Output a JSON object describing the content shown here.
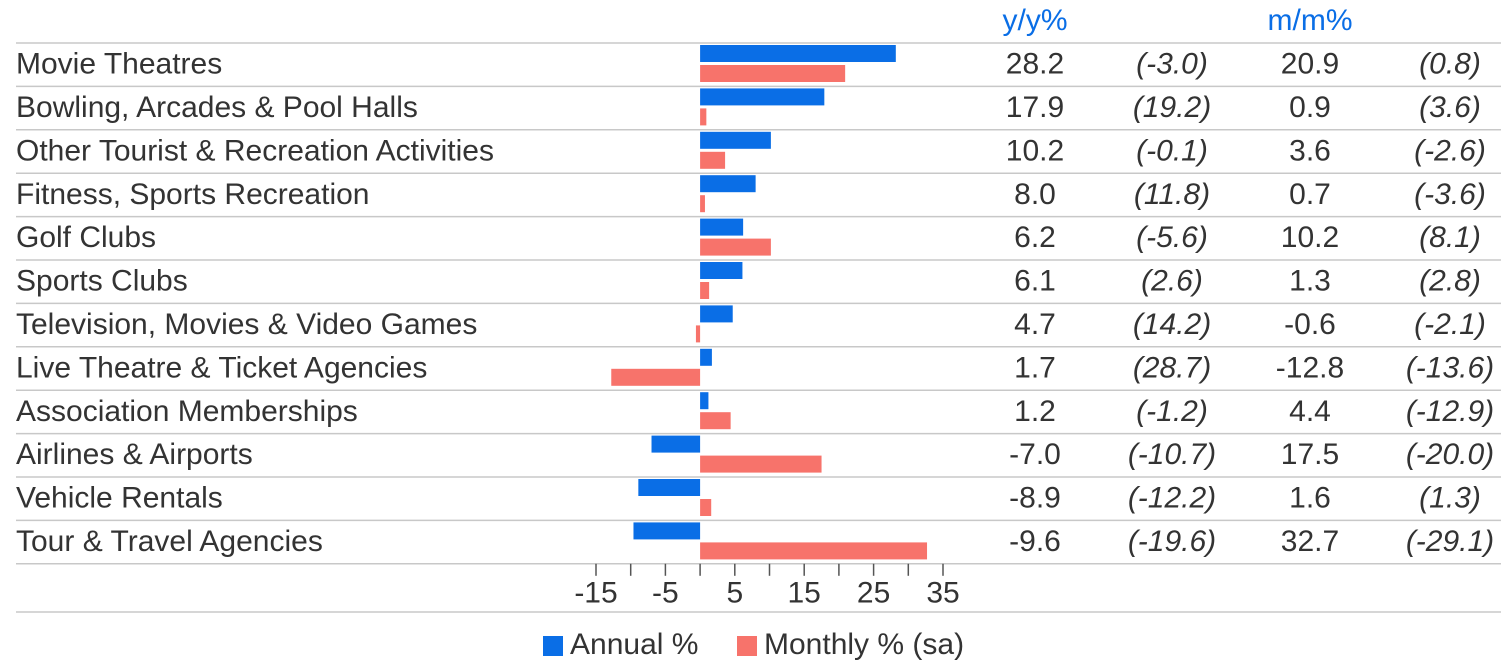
{
  "chart_data": {
    "type": "bar",
    "orientation": "horizontal",
    "categories": [
      "Movie Theatres",
      "Bowling, Arcades & Pool Halls",
      "Other Tourist & Recreation Activities",
      "Fitness, Sports Recreation",
      "Golf Clubs",
      "Sports Clubs",
      "Television, Movies & Video Games",
      "Live Theatre & Ticket Agencies",
      "Association Memberships",
      "Airlines & Airports",
      "Vehicle Rentals",
      "Tour & Travel Agencies"
    ],
    "series": [
      {
        "name": "Annual %",
        "color": "#0a6ee6",
        "column_header": "y/y%",
        "values": [
          28.2,
          17.9,
          10.2,
          8.0,
          6.2,
          6.1,
          4.7,
          1.7,
          1.2,
          -7.0,
          -8.9,
          -9.6
        ],
        "value_labels": [
          "28.2",
          "17.9",
          "10.2",
          "8.0",
          "6.2",
          "6.1",
          "4.7",
          "1.7",
          "1.2",
          "-7.0",
          "-8.9",
          "-9.6"
        ],
        "prior_values": [
          -3.0,
          19.2,
          -0.1,
          11.8,
          -5.6,
          2.6,
          14.2,
          28.7,
          -1.2,
          -10.7,
          -12.2,
          -19.6
        ],
        "prior_labels": [
          "(-3.0)",
          "(19.2)",
          "(-0.1)",
          "(11.8)",
          "(-5.6)",
          "(2.6)",
          "(14.2)",
          "(28.7)",
          "(-1.2)",
          "(-10.7)",
          "(-12.2)",
          "(-19.6)"
        ]
      },
      {
        "name": "Monthly % (sa)",
        "color": "#f7736b",
        "column_header": "m/m%",
        "values": [
          20.9,
          0.9,
          3.6,
          0.7,
          10.2,
          1.3,
          -0.6,
          -12.8,
          4.4,
          17.5,
          1.6,
          32.7
        ],
        "value_labels": [
          "20.9",
          "0.9",
          "3.6",
          "0.7",
          "10.2",
          "1.3",
          "-0.6",
          "-12.8",
          "4.4",
          "17.5",
          "1.6",
          "32.7"
        ],
        "prior_values": [
          0.8,
          3.6,
          -2.6,
          -3.6,
          8.1,
          2.8,
          -2.1,
          -13.6,
          -12.9,
          -20.0,
          1.3,
          -29.1
        ],
        "prior_labels": [
          "(0.8)",
          "(3.6)",
          "(-2.6)",
          "(-3.6)",
          "(8.1)",
          "(2.8)",
          "(-2.1)",
          "(-13.6)",
          "(-12.9)",
          "(-20.0)",
          "(1.3)",
          "(-29.1)"
        ]
      }
    ],
    "xlim": [
      -15,
      35
    ],
    "xticks": [
      -15,
      -5,
      5,
      15,
      25,
      35
    ],
    "xminor_ticks": [
      -10,
      0,
      10,
      20,
      30
    ],
    "legend": "bottom"
  }
}
